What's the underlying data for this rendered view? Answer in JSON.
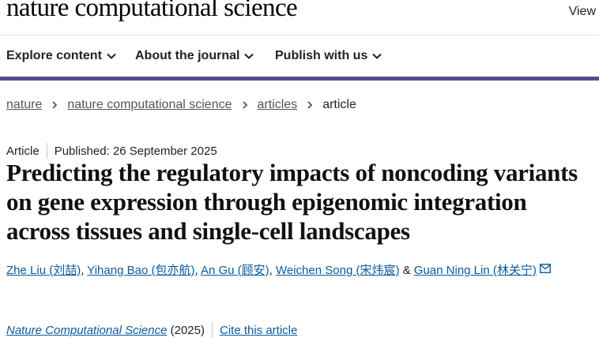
{
  "header": {
    "logo_text": "nature computational science",
    "view_label": "View"
  },
  "nav": {
    "items": [
      {
        "label": "Explore content"
      },
      {
        "label": "About the journal"
      },
      {
        "label": "Publish with us"
      }
    ]
  },
  "colors": {
    "accent_bar": "#5a4a8e",
    "link": "#0a5a9e"
  },
  "breadcrumb": {
    "items": [
      "nature",
      "nature computational science",
      "articles"
    ],
    "current": "article"
  },
  "article": {
    "type": "Article",
    "published": "Published: 26 September 2025",
    "title": "Predicting the regulatory impacts of noncoding variants on gene expression through epigenomic integration across tissues and single-cell landscapes",
    "authors": [
      "Zhe Liu (刘喆)",
      "Yihang Bao (包亦航)",
      "An Gu (顾安)",
      "Weichen Song (宋炜宸)",
      "Guan Ning Lin (林关宁)"
    ],
    "author_sep": ", ",
    "author_last_sep": " & ",
    "journal": "Nature Computational Science",
    "year": " (2025)",
    "cite_label": "Cite this article"
  }
}
